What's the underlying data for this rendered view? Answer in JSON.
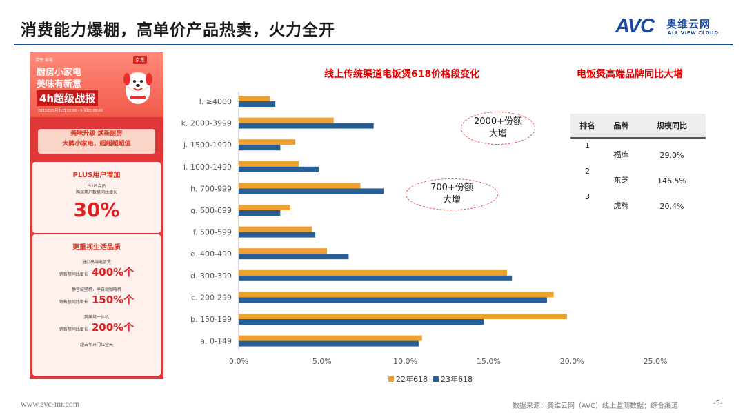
{
  "page": {
    "title": "消费能力爆棚，高单价产品热卖，火力全开",
    "logo_avc": "AVC",
    "logo_cn": "奥维云网",
    "logo_en": "ALL VIEW CLOUD",
    "footer_url": "www.avc-mr.com",
    "footer_source": "数据来源：奥维云网（AVC）线上监测数据；综合渠道",
    "page_number": "-5-"
  },
  "poster": {
    "brand": "京东 家电",
    "jd": "京东",
    "headline1": "厨房小家电",
    "headline2": "美味有新意",
    "headline3": "4h超级战报",
    "date": "2023年05月31日 20:00 - 6月1日 00:00",
    "band_line1": "美味升级 焕新厨房",
    "band_line2": "大牌小家电，超超超超值",
    "card1_title": "PLUS用户增加",
    "card1_sub1": "PLUS会员",
    "card1_sub2": "购买用户数量同比增长",
    "card1_value": "30%",
    "card2_title": "更重视生活品质",
    "rows": [
      {
        "label": "进口高端电饭煲",
        "metric": "销售额同比增长",
        "value": "400%个"
      },
      {
        "label": "静音破壁机、半自动咖啡机",
        "metric": "销售额同比增长",
        "value": "150%个"
      },
      {
        "label": "奥蒸烤一体机",
        "metric": "销售额同比增长",
        "value": "200%个"
      }
    ],
    "footer": "超去年开门红全天"
  },
  "chart_data": {
    "type": "bar",
    "orientation": "horizontal",
    "title": "线上传统渠道电饭煲618价格段变化",
    "categories": [
      "a. 0-149",
      "b. 150-199",
      "c. 200-299",
      "d. 300-399",
      "e. 400-499",
      "f. 500-599",
      "g. 600-699",
      "h. 700-999",
      "i. 1000-1499",
      "j. 1500-1999",
      "k. 2000-3999",
      "l. ≥4000"
    ],
    "series": [
      {
        "name": "22年618",
        "color": "#f0a030",
        "values": [
          11.0,
          19.7,
          18.9,
          16.1,
          5.3,
          4.4,
          3.1,
          7.3,
          3.6,
          3.4,
          5.7,
          1.9
        ]
      },
      {
        "name": "23年618",
        "color": "#2a5f96",
        "values": [
          10.8,
          14.7,
          18.5,
          16.4,
          6.6,
          4.6,
          2.5,
          8.7,
          4.8,
          2.5,
          8.1,
          2.2
        ]
      }
    ],
    "xlim": [
      0,
      25
    ],
    "x_ticks": [
      "0.0%",
      "5.0%",
      "10.0%",
      "15.0%",
      "20.0%",
      "25.0%"
    ],
    "xlabel": "",
    "ylabel": "",
    "grid": false,
    "legend_position": "bottom",
    "annotations": [
      {
        "line1": "2000+份额",
        "line2": "大增",
        "category": "k. 2000-3999"
      },
      {
        "line1": "700+份额",
        "line2": "大增",
        "category": "h. 700-999"
      }
    ]
  },
  "brand_table": {
    "title": "电饭煲高端品牌同比大增",
    "headers": [
      "排名",
      "品牌",
      "规模同比"
    ],
    "rows": [
      {
        "rank": "1",
        "brand": "福库",
        "growth": "29.0%"
      },
      {
        "rank": "2",
        "brand": "东芝",
        "growth": "146.5%"
      },
      {
        "rank": "3",
        "brand": "虎牌",
        "growth": "20.4%"
      }
    ]
  }
}
